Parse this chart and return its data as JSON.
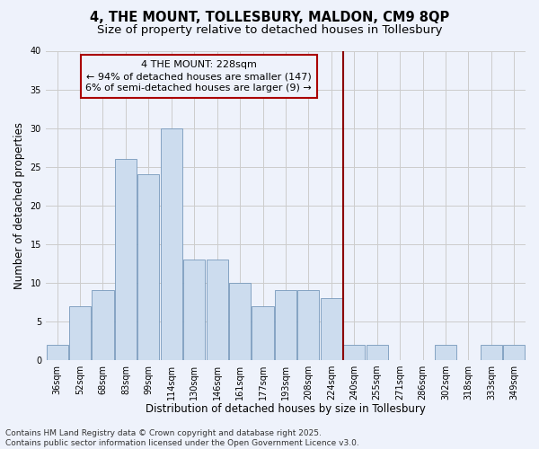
{
  "title": "4, THE MOUNT, TOLLESBURY, MALDON, CM9 8QP",
  "subtitle": "Size of property relative to detached houses in Tollesbury",
  "xlabel": "Distribution of detached houses by size in Tollesbury",
  "ylabel": "Number of detached properties",
  "categories": [
    "36sqm",
    "52sqm",
    "68sqm",
    "83sqm",
    "99sqm",
    "114sqm",
    "130sqm",
    "146sqm",
    "161sqm",
    "177sqm",
    "193sqm",
    "208sqm",
    "224sqm",
    "240sqm",
    "255sqm",
    "271sqm",
    "286sqm",
    "302sqm",
    "318sqm",
    "333sqm",
    "349sqm"
  ],
  "values": [
    2,
    7,
    9,
    26,
    24,
    30,
    13,
    13,
    10,
    7,
    9,
    9,
    8,
    2,
    2,
    0,
    0,
    2,
    0,
    2,
    2
  ],
  "bar_color": "#ccdcee",
  "bar_edge_color": "#7799bb",
  "grid_color": "#cccccc",
  "background_color": "#eef2fb",
  "vline_color": "#8b0000",
  "annotation_text": "4 THE MOUNT: 228sqm\n← 94% of detached houses are smaller (147)\n6% of semi-detached houses are larger (9) →",
  "annotation_box_color": "#aa0000",
  "ylim": [
    0,
    40
  ],
  "yticks": [
    0,
    5,
    10,
    15,
    20,
    25,
    30,
    35,
    40
  ],
  "footer_line1": "Contains HM Land Registry data © Crown copyright and database right 2025.",
  "footer_line2": "Contains public sector information licensed under the Open Government Licence v3.0.",
  "title_fontsize": 10.5,
  "subtitle_fontsize": 9.5,
  "xlabel_fontsize": 8.5,
  "ylabel_fontsize": 8.5,
  "tick_fontsize": 7,
  "footer_fontsize": 6.5,
  "ann_fontsize": 8
}
